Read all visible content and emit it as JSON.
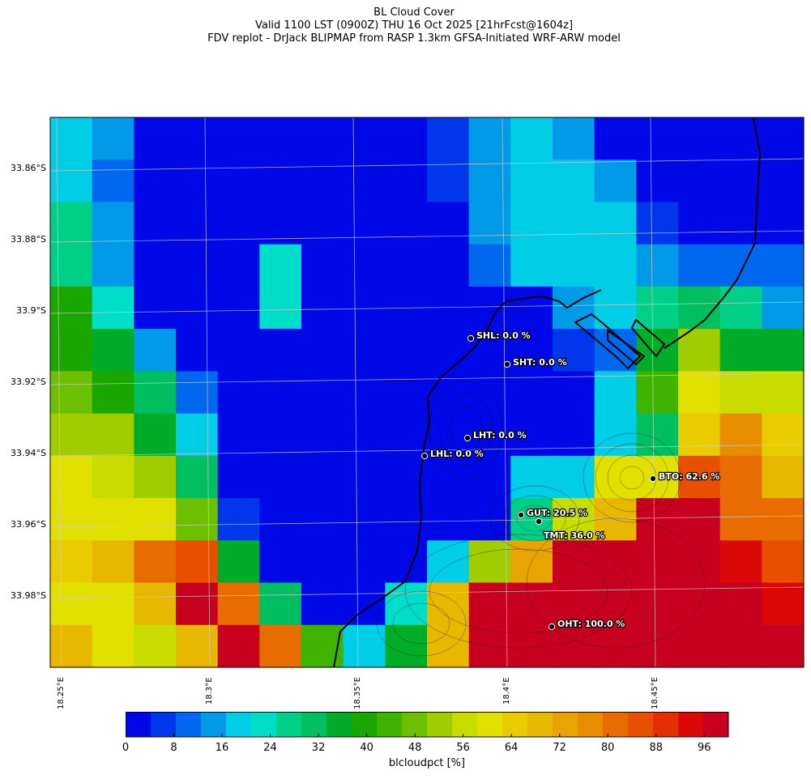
{
  "title": {
    "line1": "BL Cloud Cover",
    "line2": "Valid 1100 LST (0900Z) THU 16 Oct 2025 [21hrFcst@1604z]",
    "line3": "FDV replot - DrJack BLIPMAP from RASP 1.3km GFSA-Initiated WRF-ARW model"
  },
  "axes": {
    "lat_labels": [
      "33.86°S",
      "33.88°S",
      "33.9°S",
      "33.92°S",
      "33.94°S",
      "33.96°S",
      "33.98°S"
    ],
    "lon_labels": [
      "18.25°E",
      "18.3°E",
      "18.35°E",
      "18.4°E",
      "18.45°E"
    ]
  },
  "colorbar": {
    "label": "blcloudpct [%]",
    "ticks": [
      "0",
      "8",
      "16",
      "24",
      "32",
      "40",
      "48",
      "56",
      "64",
      "72",
      "80",
      "88",
      "96"
    ],
    "range": [
      0,
      100
    ],
    "colors": [
      "#0008e8",
      "#0036ec",
      "#0068ee",
      "#009ae8",
      "#00cde6",
      "#00ddc8",
      "#00cf88",
      "#00bf60",
      "#00ac28",
      "#1aa800",
      "#3fb400",
      "#6cc000",
      "#a0cc00",
      "#c8dc00",
      "#e2e000",
      "#e8cc00",
      "#e8b800",
      "#e8a400",
      "#e88c00",
      "#e86c00",
      "#e85000",
      "#e43000",
      "#dc0808",
      "#c80020"
    ]
  },
  "stations": [
    {
      "code": "SHL",
      "label": "SHL: 0.0 %",
      "value": 0.0
    },
    {
      "code": "SHT",
      "label": "SHT: 0.0 %",
      "value": 0.0
    },
    {
      "code": "LHT",
      "label": "LHT: 0.0 %",
      "value": 0.0
    },
    {
      "code": "LHL",
      "label": "LHL: 0.0 %",
      "value": 0.0
    },
    {
      "code": "BTO",
      "label": "BTO: 62.6 %",
      "value": 62.6
    },
    {
      "code": "GUT",
      "label": "GUT: 20.5 %",
      "value": 20.5
    },
    {
      "code": "TMT",
      "label": "TMT: 36.0 %",
      "value": 36.0
    },
    {
      "code": "OHT",
      "label": "OHT: 100.0 %",
      "value": 100.0
    }
  ],
  "grid_values": [
    [
      20,
      13,
      2,
      2,
      2,
      2,
      2,
      2,
      2,
      8,
      13,
      18,
      13,
      2,
      2,
      2,
      2,
      2
    ],
    [
      20,
      10,
      2,
      2,
      2,
      2,
      2,
      2,
      2,
      8,
      13,
      18,
      18,
      13,
      2,
      2,
      2,
      2
    ],
    [
      28,
      13,
      2,
      2,
      2,
      2,
      2,
      2,
      2,
      2,
      13,
      18,
      18,
      18,
      8,
      2,
      2,
      2
    ],
    [
      28,
      13,
      2,
      2,
      2,
      22,
      2,
      2,
      2,
      2,
      10,
      18,
      18,
      18,
      13,
      10,
      10,
      10
    ],
    [
      38,
      24,
      2,
      2,
      2,
      24,
      2,
      2,
      2,
      2,
      2,
      2,
      13,
      20,
      26,
      30,
      26,
      13
    ],
    [
      38,
      36,
      14,
      2,
      2,
      2,
      2,
      2,
      2,
      2,
      2,
      2,
      8,
      10,
      36,
      50,
      36,
      36
    ],
    [
      46,
      40,
      30,
      10,
      2,
      2,
      2,
      2,
      2,
      2,
      2,
      2,
      2,
      18,
      44,
      62,
      56,
      56
    ],
    [
      54,
      52,
      36,
      20,
      2,
      2,
      2,
      2,
      2,
      2,
      2,
      2,
      2,
      20,
      32,
      64,
      76,
      64
    ],
    [
      60,
      58,
      52,
      30,
      2,
      2,
      2,
      2,
      2,
      2,
      2,
      20,
      20,
      60,
      62,
      86,
      80,
      68
    ],
    [
      62,
      62,
      62,
      48,
      8,
      2,
      2,
      2,
      2,
      2,
      2,
      28,
      58,
      70,
      96,
      96,
      82,
      80
    ],
    [
      66,
      68,
      80,
      86,
      36,
      2,
      2,
      2,
      2,
      18,
      54,
      74,
      96,
      96,
      96,
      96,
      92,
      86
    ],
    [
      62,
      62,
      68,
      96,
      80,
      32,
      2,
      2,
      22,
      68,
      96,
      96,
      96,
      96,
      96,
      96,
      96,
      92
    ],
    [
      68,
      60,
      58,
      70,
      96,
      82,
      42,
      18,
      34,
      68,
      96,
      96,
      96,
      96,
      96,
      96,
      96,
      96
    ]
  ]
}
